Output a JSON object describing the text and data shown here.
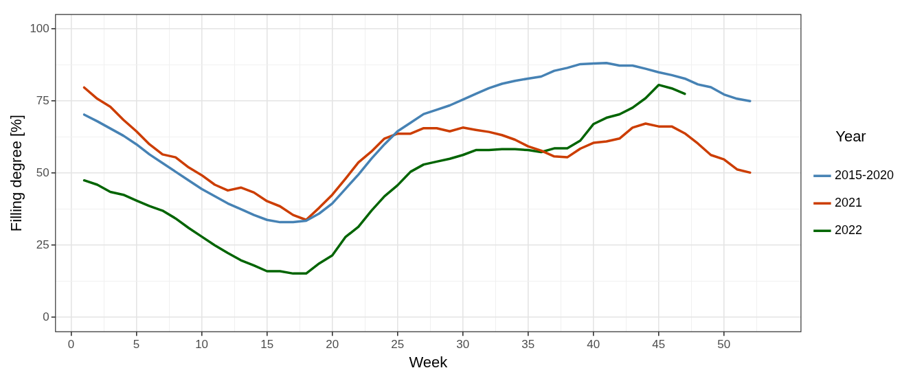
{
  "chart_data": {
    "type": "line",
    "xlabel": "Week",
    "ylabel": "Filling degree [%]",
    "legend_title": "Year",
    "legend": "right",
    "grid": true,
    "marker": "none",
    "line_style": "solid",
    "x": [
      1,
      2,
      3,
      4,
      5,
      6,
      7,
      8,
      9,
      10,
      11,
      12,
      13,
      14,
      15,
      16,
      17,
      18,
      19,
      20,
      21,
      22,
      23,
      24,
      25,
      26,
      27,
      28,
      29,
      30,
      31,
      32,
      33,
      34,
      35,
      36,
      37,
      38,
      39,
      40,
      41,
      42,
      43,
      44,
      45,
      46,
      47,
      48,
      49,
      50,
      51,
      52
    ],
    "xlim": [
      -1.2,
      55.9
    ],
    "xticks": [
      0,
      {
        "value": 2.5,
        "label": null
      },
      5,
      {
        "value": 7.5,
        "label": null
      },
      10,
      {
        "value": 12.5,
        "label": null
      },
      15,
      {
        "value": 17.5,
        "label": null
      },
      20,
      {
        "value": 22.5,
        "label": null
      },
      25,
      {
        "value": 27.5,
        "label": null
      },
      30,
      {
        "value": 32.5,
        "label": null
      },
      35,
      {
        "value": 37.5,
        "label": null
      },
      40,
      {
        "value": 42.5,
        "label": null
      },
      45,
      {
        "value": 47.5,
        "label": null
      },
      50,
      {
        "value": 52.5,
        "label": null
      }
    ],
    "ylim": [
      -5,
      105
    ],
    "yticks": [
      0,
      {
        "value": 12.5,
        "label": null
      },
      25,
      {
        "value": 37.5,
        "label": null
      },
      50,
      {
        "value": 62.5,
        "label": null
      },
      75,
      {
        "value": 87.5,
        "label": null
      },
      100
    ],
    "series": [
      {
        "name": "2015-2020",
        "color": "#4682b4",
        "values": [
          70.3,
          68,
          65.5,
          63,
          60,
          56.5,
          53.5,
          50.5,
          47.5,
          44.5,
          42,
          39.5,
          37.5,
          35.5,
          33.8,
          33,
          33,
          33.5,
          36,
          39.5,
          44.5,
          49.5,
          55,
          60,
          64.5,
          67.5,
          70.5,
          72,
          73.5,
          75.5,
          77.5,
          79.5,
          81,
          82,
          82.8,
          83.5,
          85.5,
          86.5,
          87.8,
          88,
          88.2,
          87.3,
          87.3,
          86.2,
          85,
          84,
          82.8,
          80.8,
          79.8,
          77.3,
          75.8,
          75
        ]
      },
      {
        "name": "2021",
        "color": "#cc3d00",
        "values": [
          79.7,
          75.8,
          73,
          68.5,
          64.5,
          60,
          56.5,
          55.5,
          52,
          49.3,
          46,
          44,
          45,
          43.3,
          40.3,
          38.5,
          35.5,
          33.8,
          38,
          42.5,
          48,
          53.7,
          57.5,
          62,
          63.7,
          63.7,
          65.6,
          65.6,
          64.5,
          65.8,
          65,
          64.3,
          63.2,
          61.6,
          59.3,
          57.8,
          55.8,
          55.5,
          58.5,
          60.5,
          61,
          62,
          65.8,
          67.2,
          66.2,
          66.2,
          63.8,
          60.3,
          56.3,
          54.8,
          51.3,
          50.2
        ]
      },
      {
        "name": "2022",
        "color": "#006400",
        "values": [
          47.5,
          46,
          43.5,
          42.5,
          40.5,
          38.6,
          37,
          34.3,
          31,
          28,
          25,
          22.3,
          19.8,
          18,
          16,
          16,
          15.2,
          15.2,
          18.7,
          21.5,
          27.8,
          31.4,
          37,
          42,
          45.8,
          50.5,
          53,
          54,
          55,
          56.3,
          58,
          58,
          58.3,
          58.3,
          58,
          57.3,
          58.6,
          58.6,
          61.3,
          67,
          69.2,
          70.4,
          72.7,
          76,
          80.6,
          79.4,
          77.5,
          null,
          null,
          null,
          null,
          null
        ]
      }
    ]
  }
}
